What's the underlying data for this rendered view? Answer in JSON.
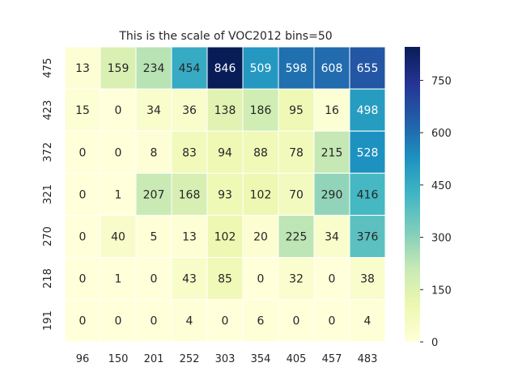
{
  "chart_data": {
    "type": "heatmap",
    "title": "This is the scale of VOC2012 bins=50",
    "xlabel": "",
    "ylabel": "",
    "x_ticks": [
      "96",
      "150",
      "201",
      "252",
      "303",
      "354",
      "405",
      "457",
      "483"
    ],
    "y_ticks": [
      "475",
      "423",
      "372",
      "321",
      "270",
      "218",
      "191"
    ],
    "values": [
      [
        13,
        159,
        234,
        454,
        846,
        509,
        598,
        608,
        655
      ],
      [
        15,
        0,
        34,
        36,
        138,
        186,
        95,
        16,
        498
      ],
      [
        0,
        0,
        8,
        83,
        94,
        88,
        78,
        215,
        528
      ],
      [
        0,
        1,
        207,
        168,
        93,
        102,
        70,
        290,
        416
      ],
      [
        0,
        40,
        5,
        13,
        102,
        20,
        225,
        34,
        376
      ],
      [
        0,
        1,
        0,
        43,
        85,
        0,
        32,
        0,
        38
      ],
      [
        0,
        0,
        0,
        4,
        0,
        6,
        0,
        0,
        4
      ]
    ],
    "colormap": "YlGnBu",
    "vmin": 0,
    "vmax": 846,
    "colorbar_ticks": [
      "0",
      "150",
      "300",
      "450",
      "600",
      "750"
    ],
    "annotated": true,
    "cell_border_color": "#ffffff"
  }
}
